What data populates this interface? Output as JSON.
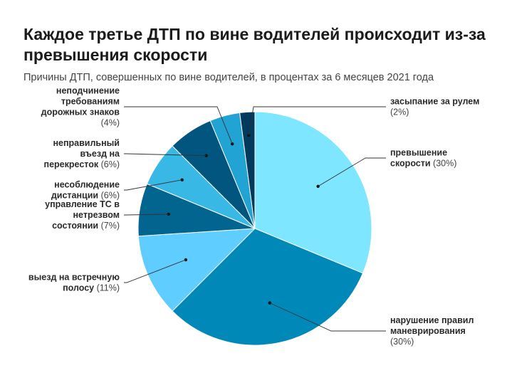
{
  "header": {
    "title": "Каждое третье ДТП по вине водителей происходит из-за превышения скорости",
    "subtitle": "Причины ДТП, совершенных по вине водителей, в процентах за 6 месяцев 2021 года"
  },
  "chart_data": {
    "type": "pie",
    "title": "Каждое третье ДТП по вине водителей происходит из-за превышения скорости",
    "subtitle": "Причины ДТП, совершенных по вине водителей, в процентах за 6 месяцев 2021 года",
    "unit": "%",
    "slices": [
      {
        "label": "превышение скорости",
        "value": 30,
        "value_label": "(30%)",
        "color": "#7ee6ff",
        "label_lines": [
          "превышение",
          "скорости (30%)"
        ]
      },
      {
        "label": "нарушение правил маневрирования",
        "value": 30,
        "value_label": "(30%)",
        "color": "#0089b8",
        "label_lines": [
          "нарушение правил",
          "маневрирования",
          "(30%)"
        ]
      },
      {
        "label": "выезд на встречную полосу",
        "value": 11,
        "value_label": "(11%)",
        "color": "#5fcdff",
        "label_lines": [
          "выезд на встречную",
          "полосу (11%)"
        ]
      },
      {
        "label": "управление ТС в нетрезвом состоянии",
        "value": 7,
        "value_label": "(7%)",
        "color": "#02658f",
        "label_lines": [
          "управление ТС в",
          "нетрезвом",
          "состоянии (7%)"
        ]
      },
      {
        "label": "несоблюдение дистанции",
        "value": 6,
        "value_label": "(6%)",
        "color": "#38b8e5",
        "label_lines": [
          "несоблюдение",
          "дистанции (6%)"
        ]
      },
      {
        "label": "неправильный въезд на перекресток",
        "value": 6,
        "value_label": "(6%)",
        "color": "#02557e",
        "label_lines": [
          "неправильный",
          "въезд на",
          "перекресток (6%)"
        ]
      },
      {
        "label": "неподчинение требованиям дорожных знаков",
        "value": 4,
        "value_label": "(4%)",
        "color": "#21a3d4",
        "label_lines": [
          "неподчинение",
          "требованиям",
          "дорожных знаков",
          "(4%)"
        ]
      },
      {
        "label": "засыпание за рулем",
        "value": 2,
        "value_label": "(2%)",
        "color": "#013a5c",
        "label_lines": [
          "засыпание за рулем",
          "(2%)"
        ]
      }
    ]
  }
}
